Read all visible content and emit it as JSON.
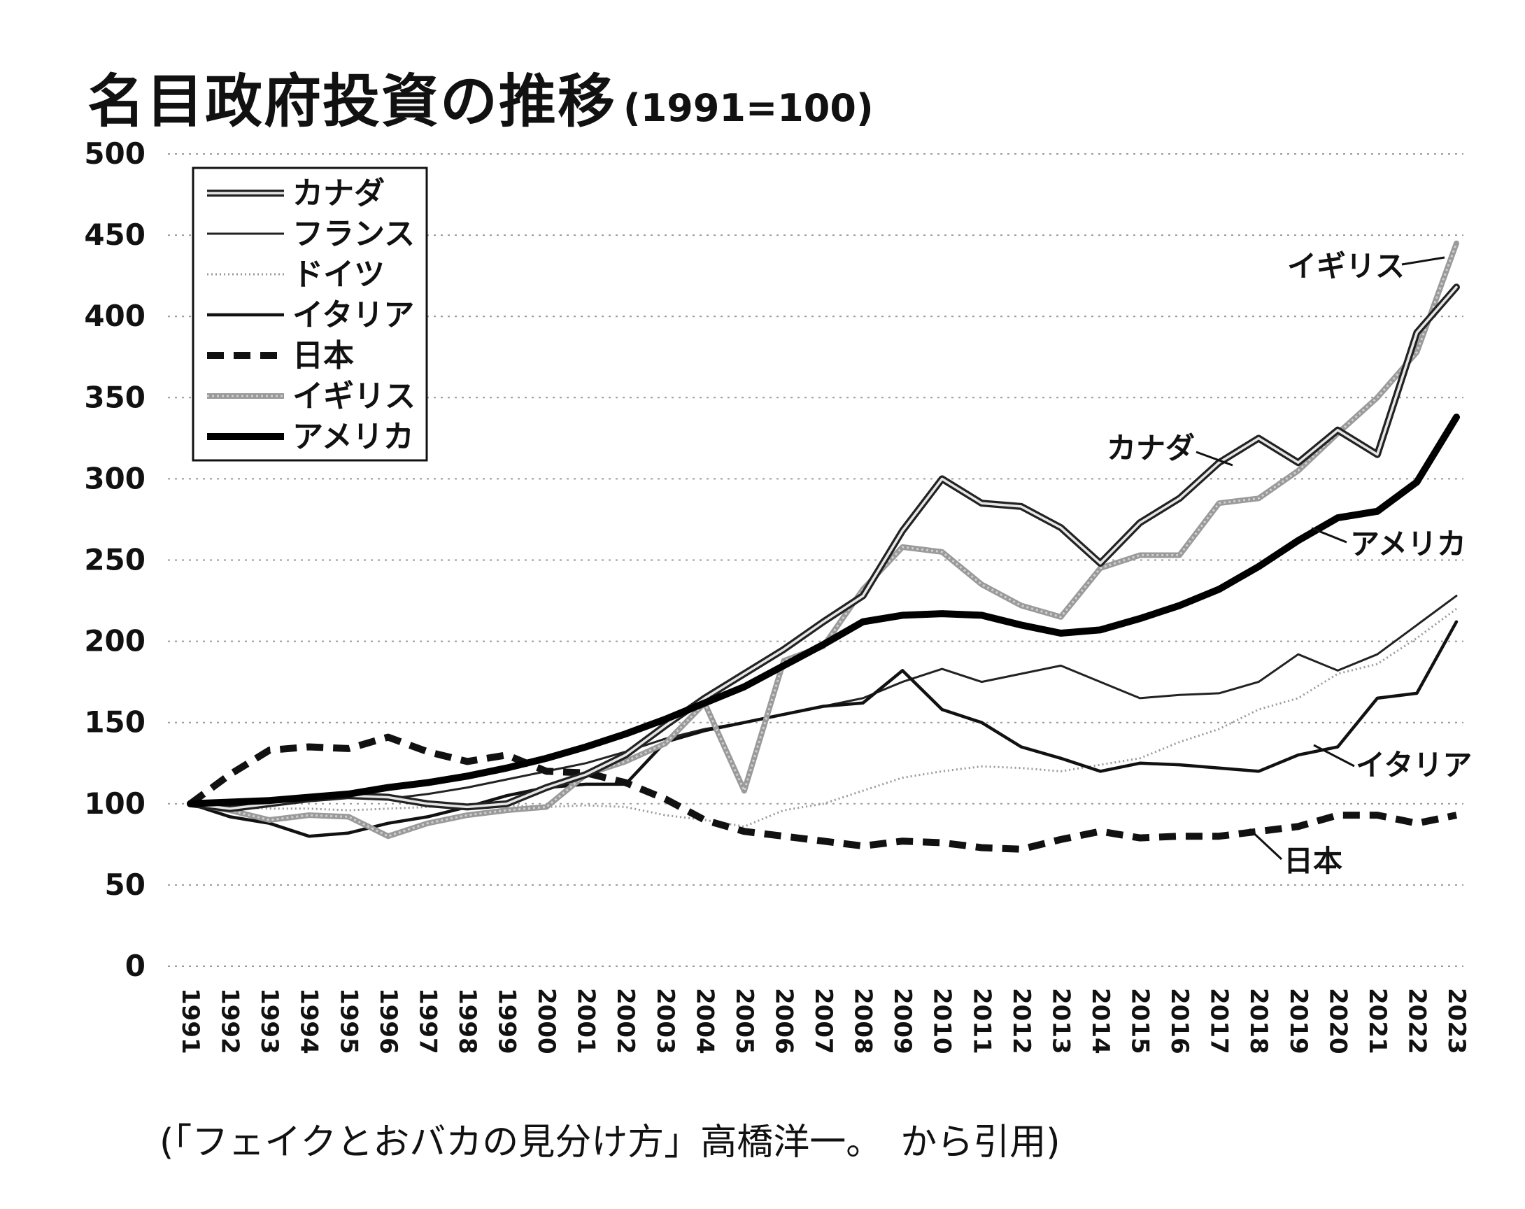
{
  "page": {
    "title": "名目政府投資の推移",
    "title_note": "(1991=100)",
    "caption": "(「フェイクとおバカの見分け方」高橋洋一。　から引用)"
  },
  "chart_data": {
    "type": "line",
    "title": "名目政府投資の推移(1991=100)",
    "xlabel": "",
    "ylabel": "",
    "ylim": [
      0,
      500
    ],
    "yticks": [
      0,
      50,
      100,
      150,
      200,
      250,
      300,
      350,
      400,
      450,
      500
    ],
    "grid": "horizontal dotted",
    "legend_position": "top-left",
    "x": [
      "1991",
      "1992",
      "1993",
      "1994",
      "1995",
      "1996",
      "1997",
      "1998",
      "1999",
      "2000",
      "2001",
      "2002",
      "2003",
      "2004",
      "2005",
      "2006",
      "2007",
      "2008",
      "2009",
      "2010",
      "2011",
      "2012",
      "2013",
      "2014",
      "2015",
      "2016",
      "2017",
      "2018",
      "2019",
      "2020",
      "2021",
      "2022",
      "2023"
    ],
    "series": [
      {
        "name": "カナダ",
        "style": "double",
        "color": "#333333",
        "values": [
          100,
          97,
          100,
          103,
          105,
          104,
          100,
          98,
          100,
          110,
          118,
          130,
          148,
          165,
          180,
          195,
          212,
          228,
          268,
          300,
          285,
          283,
          270,
          248,
          273,
          288,
          310,
          325,
          310,
          330,
          315,
          390,
          418
        ]
      },
      {
        "name": "フランス",
        "style": "thin",
        "color": "#222222",
        "values": [
          100,
          101,
          102,
          103,
          105,
          103,
          106,
          110,
          115,
          120,
          125,
          132,
          140,
          146,
          150,
          155,
          160,
          165,
          175,
          183,
          175,
          180,
          185,
          175,
          165,
          167,
          168,
          175,
          192,
          182,
          192,
          210,
          228
        ]
      },
      {
        "name": "ドイツ",
        "style": "dotted",
        "color": "#999999",
        "values": [
          100,
          98,
          97,
          97,
          96,
          97,
          98,
          99,
          99,
          98,
          99,
          98,
          93,
          90,
          86,
          96,
          100,
          108,
          116,
          120,
          123,
          122,
          120,
          124,
          128,
          138,
          146,
          158,
          165,
          180,
          186,
          202,
          220
        ]
      },
      {
        "name": "イタリア",
        "style": "solid",
        "color": "#111111",
        "values": [
          100,
          92,
          88,
          80,
          82,
          88,
          92,
          98,
          105,
          110,
          112,
          112,
          138,
          145,
          150,
          155,
          160,
          162,
          182,
          158,
          150,
          135,
          128,
          120,
          125,
          124,
          122,
          120,
          130,
          135,
          165,
          168,
          212
        ]
      },
      {
        "name": "日本",
        "style": "dashed",
        "color": "#111111",
        "values": [
          100,
          118,
          133,
          135,
          134,
          141,
          132,
          126,
          130,
          120,
          119,
          113,
          103,
          90,
          83,
          80,
          77,
          74,
          77,
          76,
          73,
          72,
          78,
          83,
          79,
          80,
          80,
          83,
          86,
          93,
          93,
          88,
          93
        ]
      },
      {
        "name": "イギリス",
        "style": "gray-thick",
        "color": "#9a9a9a",
        "values": [
          100,
          96,
          90,
          93,
          92,
          80,
          88,
          93,
          96,
          98,
          118,
          126,
          137,
          162,
          108,
          188,
          197,
          232,
          258,
          255,
          235,
          222,
          215,
          245,
          253,
          253,
          285,
          288,
          305,
          328,
          350,
          378,
          445
        ]
      },
      {
        "name": "アメリカ",
        "style": "thick",
        "color": "#000000",
        "values": [
          100,
          101,
          102,
          104,
          106,
          110,
          113,
          117,
          122,
          128,
          135,
          143,
          152,
          162,
          172,
          185,
          198,
          212,
          216,
          217,
          216,
          210,
          205,
          207,
          214,
          222,
          232,
          246,
          262,
          276,
          280,
          298,
          338
        ]
      }
    ],
    "annotations": [
      "イギリス",
      "カナダ",
      "アメリカ",
      "イタリア",
      "日本"
    ]
  }
}
